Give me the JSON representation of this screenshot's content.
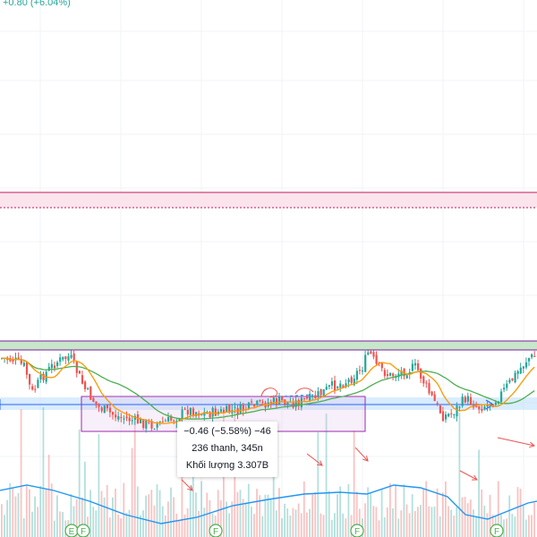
{
  "header": {
    "change_text": "+0.80 (+6.04%)"
  },
  "measure_tooltip": {
    "line1": "−0.46 (−5.58%) −46",
    "line2": "236 thanh, 345n",
    "line3": "Khối lượng 3.307B"
  },
  "event_markers": [
    {
      "label": "E"
    },
    {
      "label": "F"
    },
    {
      "label": "F"
    },
    {
      "label": "F"
    },
    {
      "label": "F"
    }
  ],
  "colors": {
    "up": "#26a69a",
    "down": "#ef5350",
    "ma_green": "#4caf50",
    "ma_orange": "#ff9800",
    "volume_ma": "#2196f3",
    "zone_pink_fill": "#fce4ec",
    "zone_pink_line": "#c2185b",
    "zone_green_fill": "#c8e6c9",
    "zone_green_line": "#7b1fa2",
    "measure_box": "#9c27b0",
    "arrow_line": "#2962ff",
    "annotation_arrows": "#ef5350",
    "grid": "#f0f3fa"
  },
  "icons": {
    "event_marker": "circle-letter-icon",
    "annotation": "red-arrow-icon"
  }
}
